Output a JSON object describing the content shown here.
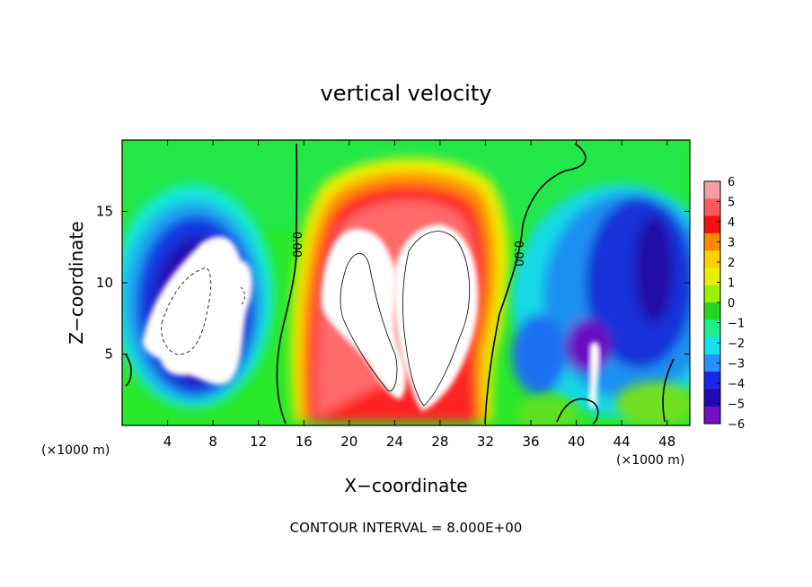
{
  "chart_data": {
    "type": "heatmap",
    "title": "vertical velocity",
    "xlabel": "X−coordinate",
    "ylabel": "Z−coordinate",
    "x_units_left": "(×1000 m)",
    "x_units_right": "(×1000 m)",
    "footer": "CONTOUR INTERVAL = 8.000E+00",
    "xlim": [
      0,
      50
    ],
    "ylim": [
      0,
      20
    ],
    "x_ticks": [
      4,
      8,
      12,
      16,
      20,
      24,
      28,
      32,
      36,
      40,
      44,
      48
    ],
    "x_tick_labels": [
      "4",
      "8",
      "12",
      "16",
      "20",
      "24",
      "28",
      "32",
      "36",
      "40",
      "44",
      "48"
    ],
    "y_ticks": [
      5,
      10,
      15
    ],
    "y_tick_labels": [
      "5",
      "10",
      "15"
    ],
    "colorbar": {
      "range": [
        -6,
        6
      ],
      "tick_labels": [
        "6",
        "5",
        "4",
        "3",
        "2",
        "1",
        "0",
        "−1",
        "−2",
        "−3",
        "−4",
        "−5",
        "−6"
      ],
      "colors": [
        "#f4a0a0",
        "#ff5a5a",
        "#f31010",
        "#ff8a00",
        "#ffd000",
        "#e6f000",
        "#99f000",
        "#22d822",
        "#1ef08c",
        "#15e0f0",
        "#2590ff",
        "#1828e6",
        "#2208b4",
        "#7010c0"
      ]
    },
    "contour_labels": [
      {
        "text": "0.00",
        "x": 15.5,
        "y": 13.5
      },
      {
        "text": "0.00",
        "x": 34.2,
        "y": 12.5
      }
    ],
    "features": [
      {
        "name": "updraft",
        "center_x": 26,
        "center_z": 9,
        "max_w": 6
      },
      {
        "name": "downdraft-left",
        "center_x": 8,
        "center_z": 8,
        "min_w": -6
      },
      {
        "name": "downdraft-right",
        "center_x": 44,
        "center_z": 8,
        "min_w": -6
      }
    ]
  }
}
